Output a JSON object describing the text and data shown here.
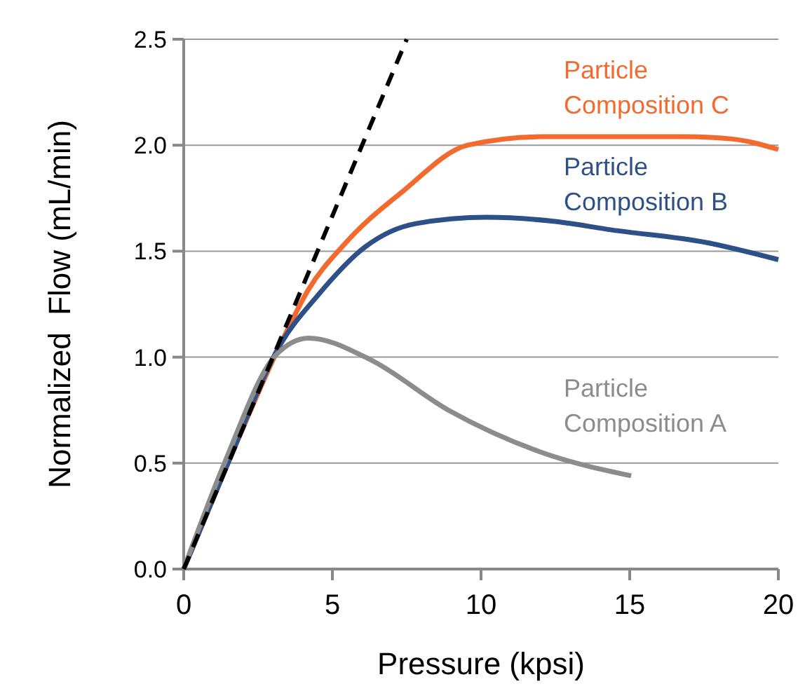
{
  "chart_data": {
    "type": "line",
    "xlabel": "Pressure (kpsi)",
    "ylabel": "Normalized  Flow (mL/min)",
    "xlim": [
      0,
      20
    ],
    "xticks": [
      0,
      5,
      10,
      15,
      20
    ],
    "ylim": [
      0,
      2.5
    ],
    "yticks": [
      {
        "value": 0,
        "label": "0.0"
      },
      {
        "value": 0.5,
        "label": "0.5"
      },
      {
        "value": 1,
        "label": "1.0"
      },
      {
        "value": 1.5,
        "label": "1.5"
      },
      {
        "value": 2,
        "label": "2.0"
      },
      {
        "value": 2.5,
        "label": "2.5"
      }
    ],
    "grid": "y",
    "series": [
      {
        "name": "Particle Composition C",
        "color": "#f26a2e",
        "x": [
          0,
          1.4,
          3.25,
          4.2,
          5.45,
          7.35,
          9.55,
          12.05,
          16.8,
          18.4,
          20
        ],
        "values": [
          0,
          0.47,
          1.06,
          1.32,
          1.54,
          1.78,
          2.0,
          2.04,
          2.04,
          2.03,
          1.98
        ]
      },
      {
        "name": "Particle Composition B",
        "color": "#2e5089",
        "x": [
          0,
          1.4,
          3.25,
          4.5,
          6.1,
          7.8,
          10.2,
          12.5,
          14.4,
          17.6,
          20
        ],
        "values": [
          0,
          0.47,
          1.06,
          1.29,
          1.52,
          1.63,
          1.66,
          1.64,
          1.6,
          1.54,
          1.46
        ]
      },
      {
        "name": "Particle Composition A",
        "color": "#8c8c8c",
        "x": [
          0,
          1.37,
          3.1,
          4.2,
          6.25,
          8.9,
          12.05,
          15.05
        ],
        "values": [
          0,
          0.5,
          1.01,
          1.09,
          0.99,
          0.75,
          0.55,
          0.44
        ]
      },
      {
        "color": "#000000",
        "line_style": "dashed",
        "x": [
          0,
          7.5
        ],
        "values": [
          0,
          2.5
        ]
      }
    ]
  }
}
